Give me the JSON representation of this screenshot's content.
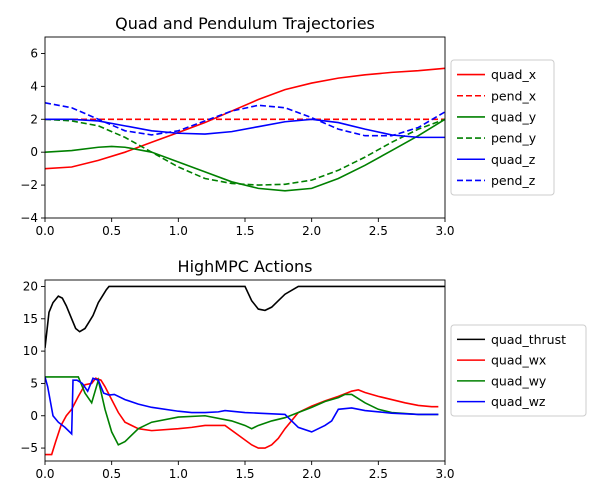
{
  "chart_data": [
    {
      "type": "line",
      "title": "Quad and Pendulum Trajectories",
      "xlabel": "",
      "ylabel": "",
      "xlim": [
        0,
        3
      ],
      "ylim": [
        -4,
        7
      ],
      "xticks": [
        0.0,
        0.5,
        1.0,
        1.5,
        2.0,
        2.5,
        3.0
      ],
      "xtick_labels": [
        "0.0",
        "0.5",
        "1.0",
        "1.5",
        "2.0",
        "2.5",
        "3.0"
      ],
      "yticks": [
        -4,
        -2,
        0,
        2,
        4,
        6
      ],
      "ytick_labels": [
        "−4",
        "−2",
        "0",
        "2",
        "4",
        "6"
      ],
      "legend_position": "right",
      "series": [
        {
          "name": "quad_x",
          "color": "#ff0000",
          "dash": "solid",
          "x": [
            0,
            0.2,
            0.4,
            0.6,
            0.8,
            1.0,
            1.2,
            1.4,
            1.6,
            1.8,
            2.0,
            2.2,
            2.4,
            2.6,
            2.8,
            3.0
          ],
          "y": [
            -1.0,
            -0.9,
            -0.5,
            0.0,
            0.6,
            1.2,
            1.8,
            2.5,
            3.2,
            3.8,
            4.2,
            4.5,
            4.7,
            4.85,
            4.95,
            5.1
          ]
        },
        {
          "name": "pend_x",
          "color": "#ff0000",
          "dash": "dashed",
          "x": [
            0,
            3.0
          ],
          "y": [
            2.0,
            2.0
          ]
        },
        {
          "name": "quad_y",
          "color": "#008000",
          "dash": "solid",
          "x": [
            0,
            0.2,
            0.4,
            0.5,
            0.6,
            0.8,
            1.0,
            1.2,
            1.4,
            1.6,
            1.8,
            2.0,
            2.2,
            2.4,
            2.6,
            2.8,
            3.0
          ],
          "y": [
            0.0,
            0.1,
            0.3,
            0.35,
            0.3,
            0.0,
            -0.6,
            -1.2,
            -1.8,
            -2.2,
            -2.35,
            -2.2,
            -1.6,
            -0.8,
            0.1,
            1.0,
            2.0
          ]
        },
        {
          "name": "pend_y",
          "color": "#008000",
          "dash": "dashed",
          "x": [
            0,
            0.2,
            0.4,
            0.6,
            0.8,
            1.0,
            1.2,
            1.4,
            1.6,
            1.8,
            2.0,
            2.2,
            2.4,
            2.6,
            2.8,
            3.0
          ],
          "y": [
            2.0,
            1.9,
            1.6,
            0.9,
            0.0,
            -0.9,
            -1.6,
            -1.9,
            -2.0,
            -1.95,
            -1.7,
            -1.1,
            -0.3,
            0.6,
            1.4,
            2.0
          ]
        },
        {
          "name": "quad_z",
          "color": "#0000ff",
          "dash": "solid",
          "x": [
            0,
            0.2,
            0.4,
            0.6,
            0.8,
            1.0,
            1.2,
            1.4,
            1.6,
            1.8,
            2.0,
            2.2,
            2.4,
            2.6,
            2.8,
            3.0
          ],
          "y": [
            2.0,
            2.0,
            1.9,
            1.6,
            1.3,
            1.15,
            1.1,
            1.25,
            1.55,
            1.85,
            2.0,
            1.8,
            1.4,
            1.05,
            0.9,
            0.9
          ]
        },
        {
          "name": "pend_z",
          "color": "#0000ff",
          "dash": "dashed",
          "x": [
            0,
            0.2,
            0.4,
            0.6,
            0.8,
            1.0,
            1.2,
            1.4,
            1.6,
            1.8,
            2.0,
            2.2,
            2.4,
            2.6,
            2.8,
            3.0
          ],
          "y": [
            3.0,
            2.7,
            2.0,
            1.3,
            1.05,
            1.3,
            1.9,
            2.5,
            2.85,
            2.7,
            2.1,
            1.4,
            1.0,
            1.0,
            1.5,
            2.45
          ]
        }
      ]
    },
    {
      "type": "line",
      "title": "HighMPC Actions",
      "xlabel": "",
      "ylabel": "",
      "xlim": [
        0,
        3
      ],
      "ylim": [
        -7,
        21
      ],
      "xticks": [
        0.0,
        0.5,
        1.0,
        1.5,
        2.0,
        2.5,
        3.0
      ],
      "xtick_labels": [
        "0.0",
        "0.5",
        "1.0",
        "1.5",
        "2.0",
        "2.5",
        "3.0"
      ],
      "yticks": [
        -5,
        0,
        5,
        10,
        15,
        20
      ],
      "ytick_labels": [
        "−5",
        "0",
        "5",
        "10",
        "15",
        "20"
      ],
      "legend_position": "right",
      "series": [
        {
          "name": "quad_thrust",
          "color": "#000000",
          "dash": "solid",
          "x": [
            0,
            0.03,
            0.06,
            0.1,
            0.13,
            0.16,
            0.2,
            0.23,
            0.26,
            0.3,
            0.33,
            0.36,
            0.38,
            0.4,
            0.43,
            0.46,
            0.48,
            0.5,
            0.55,
            1.5,
            1.55,
            1.6,
            1.65,
            1.7,
            1.75,
            1.8,
            1.9,
            3.0
          ],
          "y": [
            10.5,
            16.0,
            17.5,
            18.5,
            18.2,
            17.0,
            15.0,
            13.5,
            13.0,
            13.5,
            14.5,
            15.5,
            16.5,
            17.5,
            18.5,
            19.5,
            20.0,
            20.0,
            20.0,
            20.0,
            17.8,
            16.5,
            16.3,
            16.8,
            17.8,
            18.8,
            20.0,
            20.0
          ]
        },
        {
          "name": "quad_wx",
          "color": "#ff0000",
          "dash": "solid",
          "x": [
            0,
            0.05,
            0.08,
            0.12,
            0.16,
            0.2,
            0.25,
            0.3,
            0.35,
            0.38,
            0.42,
            0.45,
            0.5,
            0.55,
            0.6,
            0.7,
            0.8,
            1.0,
            1.1,
            1.2,
            1.35,
            1.45,
            1.55,
            1.6,
            1.65,
            1.7,
            1.75,
            1.8,
            1.9,
            2.0,
            2.1,
            2.2,
            2.3,
            2.35,
            2.4,
            2.5,
            2.6,
            2.7,
            2.8,
            2.9,
            2.95
          ],
          "y": [
            -6.0,
            -6.0,
            -4.0,
            -1.5,
            0.0,
            1.0,
            3.0,
            4.8,
            5.0,
            5.8,
            5.5,
            4.5,
            2.5,
            0.5,
            -1.0,
            -2.0,
            -2.3,
            -2.0,
            -1.8,
            -1.5,
            -1.5,
            -3.0,
            -4.5,
            -5.0,
            -5.0,
            -4.5,
            -3.5,
            -2.0,
            0.5,
            1.5,
            2.3,
            3.0,
            3.8,
            4.0,
            3.6,
            3.0,
            2.5,
            2.0,
            1.6,
            1.4,
            1.4
          ]
        },
        {
          "name": "quad_wy",
          "color": "#008000",
          "dash": "solid",
          "x": [
            0,
            0.1,
            0.2,
            0.25,
            0.3,
            0.35,
            0.4,
            0.45,
            0.5,
            0.55,
            0.6,
            0.7,
            0.8,
            1.0,
            1.2,
            1.4,
            1.5,
            1.55,
            1.6,
            1.7,
            1.8,
            1.9,
            2.0,
            2.1,
            2.2,
            2.25,
            2.3,
            2.4,
            2.5,
            2.6,
            2.8,
            2.95
          ],
          "y": [
            6.0,
            6.0,
            6.0,
            6.0,
            3.5,
            2.0,
            5.5,
            1.0,
            -2.5,
            -4.5,
            -4.0,
            -2.0,
            -1.0,
            -0.2,
            0.0,
            -0.8,
            -1.5,
            -2.0,
            -1.5,
            -0.8,
            -0.3,
            0.5,
            1.3,
            2.2,
            2.8,
            3.3,
            3.3,
            2.0,
            1.0,
            0.5,
            0.2,
            0.2
          ]
        },
        {
          "name": "quad_wz",
          "color": "#0000ff",
          "dash": "solid",
          "x": [
            0,
            0.02,
            0.06,
            0.1,
            0.15,
            0.2,
            0.21,
            0.24,
            0.28,
            0.32,
            0.36,
            0.4,
            0.44,
            0.48,
            0.52,
            0.6,
            0.7,
            0.8,
            1.0,
            1.1,
            1.2,
            1.3,
            1.35,
            1.5,
            1.6,
            1.8,
            1.85,
            1.9,
            2.0,
            2.1,
            2.15,
            2.2,
            2.3,
            2.4,
            2.6,
            2.8,
            2.95
          ],
          "y": [
            6.0,
            4.5,
            0.0,
            -1.0,
            -1.8,
            -2.8,
            5.5,
            5.5,
            5.0,
            3.8,
            5.8,
            5.5,
            3.5,
            3.2,
            3.3,
            2.5,
            1.8,
            1.3,
            0.7,
            0.5,
            0.5,
            0.6,
            0.8,
            0.5,
            0.4,
            0.2,
            -0.8,
            -1.8,
            -2.5,
            -1.5,
            -0.8,
            1.0,
            1.2,
            0.8,
            0.4,
            0.2,
            0.2
          ]
        }
      ]
    }
  ]
}
